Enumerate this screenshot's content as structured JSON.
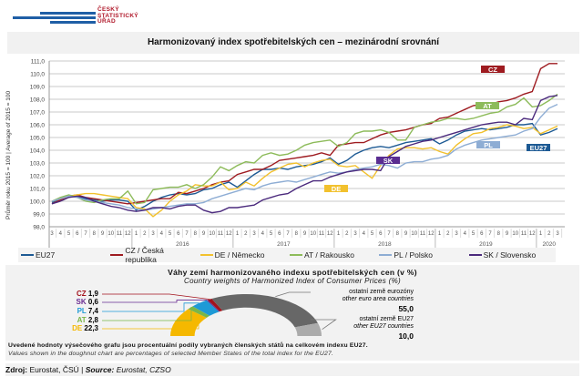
{
  "logo": {
    "lines": [
      "ČESKÝ",
      "STATISTICKÝ",
      "ÚŘAD"
    ]
  },
  "header": {
    "title": "Harmonizovaný index spotřebitelských cen – mezinárodní srovnání"
  },
  "chart_data": {
    "type": "line",
    "title": "Harmonizovaný index spotřebitelských cen – mezinárodní srovnání",
    "ylabel": "Průměr roku 2015 = 100 | Average of 2015 = 100",
    "ylim": [
      98,
      111
    ],
    "yticks": [
      "98,0",
      "99,0",
      "100,0",
      "101,0",
      "102,0",
      "103,0",
      "104,0",
      "105,0",
      "106,0",
      "107,0",
      "108,0",
      "109,0",
      "110,0",
      "111,0"
    ],
    "month_labels": [
      "3",
      "4",
      "5",
      "6",
      "7",
      "8",
      "9",
      "10",
      "11",
      "12",
      "1",
      "2",
      "3",
      "4",
      "5",
      "6",
      "7",
      "8",
      "9",
      "10",
      "11",
      "12",
      "1",
      "2",
      "3",
      "4",
      "5",
      "6",
      "7",
      "8",
      "9",
      "10",
      "11",
      "12",
      "1",
      "2",
      "3",
      "4",
      "5",
      "6",
      "7",
      "8",
      "9",
      "10",
      "11",
      "12",
      "1",
      "2",
      "3",
      "4",
      "5",
      "6",
      "7",
      "8",
      "9",
      "10",
      "11",
      "12",
      "1",
      "2",
      "3"
    ],
    "years": [
      {
        "label": "2016",
        "start": 10,
        "end": 21
      },
      {
        "label": "2017",
        "start": 22,
        "end": 33
      },
      {
        "label": "2018",
        "start": 34,
        "end": 45
      },
      {
        "label": "2019",
        "start": 46,
        "end": 57
      },
      {
        "label": "2020",
        "start": 58,
        "end": 60
      }
    ],
    "grid": true,
    "legend_position": "bottom",
    "series": [
      {
        "name": "EU27",
        "tag": "EU27",
        "color": "#1d5a94",
        "values": [
          99.9,
          100.2,
          100.4,
          100.4,
          100.2,
          100.1,
          100.0,
          100.1,
          100.1,
          100.0,
          99.3,
          99.6,
          100.0,
          100.3,
          100.5,
          100.6,
          100.5,
          100.6,
          100.9,
          101.0,
          101.3,
          101.5,
          101.1,
          101.6,
          102.1,
          102.5,
          102.5,
          102.6,
          102.5,
          102.7,
          102.8,
          102.9,
          103.1,
          103.4,
          102.9,
          103.2,
          103.7,
          104.0,
          104.2,
          104.3,
          104.2,
          104.4,
          104.6,
          104.7,
          104.8,
          104.9,
          104.5,
          104.8,
          105.2,
          105.5,
          105.6,
          105.7,
          105.6,
          105.7,
          105.8,
          106.0,
          106.0,
          106.1,
          105.2,
          105.4,
          105.7
        ]
      },
      {
        "name": "CZ / Česká republika",
        "tag": "CZ",
        "color": "#9e1b20",
        "values": [
          99.8,
          100.1,
          100.4,
          100.5,
          100.3,
          100.2,
          100.1,
          100.0,
          99.9,
          99.8,
          99.9,
          100.0,
          100.1,
          100.2,
          100.2,
          100.7,
          100.6,
          100.8,
          101.0,
          101.3,
          101.5,
          101.6,
          102.1,
          102.3,
          102.5,
          102.5,
          102.8,
          103.2,
          103.3,
          103.4,
          103.5,
          103.6,
          103.8,
          103.6,
          104.4,
          104.5,
          104.6,
          104.6,
          104.9,
          105.2,
          105.4,
          105.5,
          105.6,
          105.8,
          106.0,
          106.1,
          106.5,
          106.6,
          106.9,
          107.2,
          107.5,
          107.6,
          107.6,
          107.8,
          107.9,
          108.1,
          108.4,
          108.6,
          110.4,
          110.8,
          110.8
        ]
      },
      {
        "name": "DE / Německo",
        "tag": "DE",
        "color": "#f2c12e",
        "values": [
          100.0,
          100.2,
          100.4,
          100.5,
          100.6,
          100.6,
          100.5,
          100.4,
          100.3,
          100.2,
          99.5,
          99.4,
          98.8,
          99.3,
          100.0,
          100.5,
          100.8,
          101.3,
          101.2,
          101.2,
          101.5,
          100.9,
          101.0,
          101.5,
          101.2,
          101.8,
          102.3,
          102.6,
          102.9,
          103.0,
          102.7,
          103.0,
          103.2,
          103.3,
          102.8,
          102.7,
          102.8,
          102.3,
          101.8,
          102.8,
          103.6,
          104.1,
          104.2,
          104.2,
          104.1,
          104.2,
          103.9,
          103.7,
          104.4,
          104.9,
          105.3,
          105.4,
          105.7,
          105.8,
          106.0,
          105.9,
          105.7,
          105.8,
          105.3,
          105.6,
          105.9
        ]
      },
      {
        "name": "AT / Rakousko",
        "tag": "AT",
        "color": "#8dbb5a",
        "values": [
          100.0,
          100.3,
          100.5,
          100.3,
          100.0,
          99.9,
          100.1,
          100.2,
          100.2,
          100.8,
          99.8,
          99.9,
          100.9,
          101.0,
          101.1,
          101.1,
          101.3,
          101.0,
          101.3,
          101.9,
          102.7,
          102.4,
          102.8,
          103.1,
          103.0,
          103.6,
          103.8,
          103.6,
          103.7,
          104.0,
          104.4,
          104.6,
          104.7,
          104.8,
          104.3,
          104.6,
          105.3,
          105.5,
          105.5,
          105.6,
          105.4,
          104.8,
          104.8,
          105.8,
          106.0,
          106.2,
          106.3,
          106.5,
          106.5,
          106.4,
          106.5,
          106.7,
          106.9,
          107.0,
          107.4,
          107.6,
          108.1,
          107.4,
          107.5,
          107.9,
          108.4
        ]
      },
      {
        "name": "PL / Polsko",
        "tag": "PL",
        "color": "#8eadd4",
        "values": [
          100.0,
          100.2,
          100.4,
          100.3,
          100.1,
          100.0,
          99.9,
          99.8,
          99.7,
          99.5,
          99.4,
          99.3,
          99.4,
          99.5,
          99.6,
          99.7,
          99.8,
          99.8,
          99.9,
          100.2,
          100.4,
          100.6,
          100.8,
          101.0,
          100.9,
          101.2,
          101.4,
          101.5,
          101.6,
          101.5,
          101.7,
          101.9,
          102.1,
          102.3,
          102.2,
          102.3,
          102.5,
          102.6,
          102.7,
          102.9,
          102.8,
          102.6,
          103.0,
          103.1,
          103.1,
          103.3,
          103.4,
          103.6,
          104.1,
          104.4,
          104.6,
          104.8,
          104.9,
          105.0,
          105.1,
          105.2,
          105.5,
          105.7,
          106.6,
          107.3,
          107.6
        ]
      },
      {
        "name": "SK / Slovensko",
        "tag": "SK",
        "color": "#4b2a7d",
        "values": [
          99.8,
          100.0,
          100.3,
          100.4,
          100.3,
          100.0,
          99.8,
          99.6,
          99.5,
          99.3,
          99.2,
          99.3,
          99.5,
          99.5,
          99.4,
          99.6,
          99.7,
          99.7,
          99.3,
          99.1,
          99.2,
          99.5,
          99.5,
          99.6,
          99.7,
          100.1,
          100.3,
          100.5,
          100.6,
          101.0,
          101.3,
          101.6,
          101.6,
          101.9,
          102.1,
          102.3,
          102.4,
          102.5,
          102.5,
          102.4,
          103.5,
          103.9,
          104.3,
          104.5,
          104.7,
          104.8,
          105.0,
          105.2,
          105.4,
          105.6,
          105.8,
          106.0,
          106.1,
          106.2,
          106.2,
          106.0,
          106.5,
          106.4,
          107.9,
          108.2,
          108.3
        ]
      }
    ]
  },
  "weights": {
    "title_cs": "Váhy zemí harmonizovaného indexu spotřebitelských cen (v %)",
    "title_en": "Country weights of Harmonized Index of Consumer Prices (%)",
    "slices": [
      {
        "code": "DE",
        "value": 22.3,
        "value_label": "22,3",
        "color": "#f5b800"
      },
      {
        "code": "AT",
        "value": 2.8,
        "value_label": "2,8",
        "color": "#7ab648"
      },
      {
        "code": "PL",
        "value": 7.4,
        "value_label": "7,4",
        "color": "#1e9ad6"
      },
      {
        "code": "SK",
        "value": 0.6,
        "value_label": "0,6",
        "color": "#6a2c91"
      },
      {
        "code": "CZ",
        "value": 1.9,
        "value_label": "1,9",
        "color": "#a3121c"
      },
      {
        "code": "other_euro",
        "value": 55.0,
        "value_label": "55,0",
        "color": "#676767",
        "label_cs": "ostatní země eurozóny",
        "label_en": "other euro area countries"
      },
      {
        "code": "other_eu",
        "value": 10.0,
        "value_label": "10,0",
        "color": "#ababab",
        "label_cs": "ostatní země EU27",
        "label_en": "other EU27 countries"
      }
    ],
    "note_cs": "Uvedené hodnoty výsečového grafu jsou procentuální podíly vybraných členských států na celkovém indexu EU27.",
    "note_en": "Values shown in the doughnut chart are percentages of selected Member States of the total index for the EU27."
  },
  "source": {
    "label_cs": "Zdroj:",
    "text_cs": " Eurostat, ČSÚ | ",
    "label_en": "Source:",
    "text_en": " Eurostat, CZSO"
  }
}
